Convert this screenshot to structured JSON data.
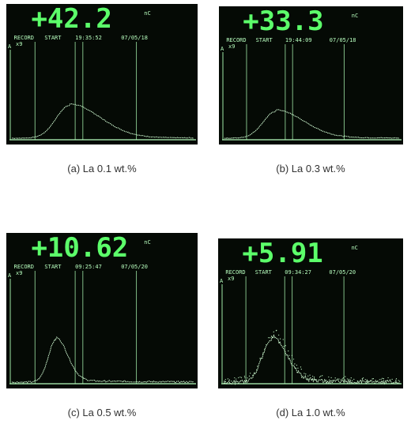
{
  "panels": [
    {
      "readout": "+42.2",
      "unit": "nC",
      "record": "RECORD",
      "start": "START",
      "time": "19:35:52",
      "date": "07/05/18",
      "channel": "A",
      "scale": "x9",
      "caption": "(a) La 0.1 wt.%"
    },
    {
      "readout": "+33.3",
      "unit": "nC",
      "record": "RECORD",
      "start": "START",
      "time": "19:44:09",
      "date": "07/05/18",
      "channel": "A",
      "scale": "x9",
      "caption": "(b) La 0.3 wt.%"
    },
    {
      "readout": "+10.62",
      "unit": "nC",
      "record": "RECORD",
      "start": "START",
      "time": "09:25:47",
      "date": "07/05/20",
      "channel": "A",
      "scale": "x9",
      "caption": "(c) La 0.5 wt.%"
    },
    {
      "readout": "+5.91",
      "unit": "nC",
      "record": "RECORD",
      "start": "START",
      "time": "09:34:27",
      "date": "07/05/20",
      "channel": "A",
      "scale": "x9",
      "caption": "(d) La 1.0 wt.%"
    }
  ]
}
